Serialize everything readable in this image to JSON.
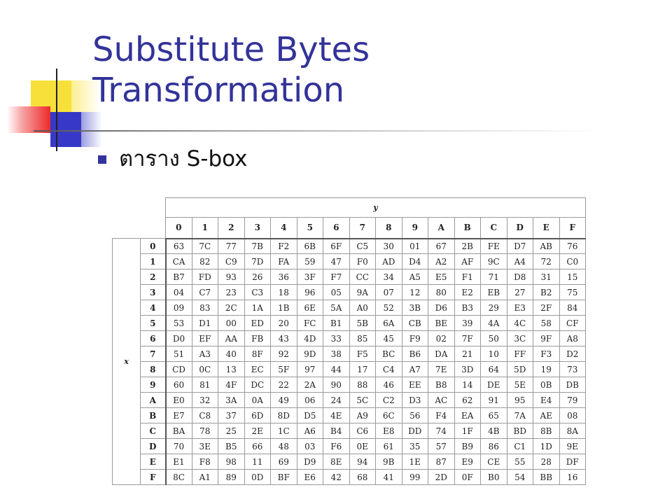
{
  "slide": {
    "title": "Substitute Bytes Transformation",
    "bullet": "ตาราง S-box"
  },
  "sbox": {
    "y_label": "y",
    "x_label": "x",
    "col_headers": [
      "0",
      "1",
      "2",
      "3",
      "4",
      "5",
      "6",
      "7",
      "8",
      "9",
      "A",
      "B",
      "C",
      "D",
      "E",
      "F"
    ],
    "rows": [
      {
        "h": "0",
        "v": [
          "63",
          "7C",
          "77",
          "7B",
          "F2",
          "6B",
          "6F",
          "C5",
          "30",
          "01",
          "67",
          "2B",
          "FE",
          "D7",
          "AB",
          "76"
        ]
      },
      {
        "h": "1",
        "v": [
          "CA",
          "82",
          "C9",
          "7D",
          "FA",
          "59",
          "47",
          "F0",
          "AD",
          "D4",
          "A2",
          "AF",
          "9C",
          "A4",
          "72",
          "C0"
        ]
      },
      {
        "h": "2",
        "v": [
          "B7",
          "FD",
          "93",
          "26",
          "36",
          "3F",
          "F7",
          "CC",
          "34",
          "A5",
          "E5",
          "F1",
          "71",
          "D8",
          "31",
          "15"
        ]
      },
      {
        "h": "3",
        "v": [
          "04",
          "C7",
          "23",
          "C3",
          "18",
          "96",
          "05",
          "9A",
          "07",
          "12",
          "80",
          "E2",
          "EB",
          "27",
          "B2",
          "75"
        ]
      },
      {
        "h": "4",
        "v": [
          "09",
          "83",
          "2C",
          "1A",
          "1B",
          "6E",
          "5A",
          "A0",
          "52",
          "3B",
          "D6",
          "B3",
          "29",
          "E3",
          "2F",
          "84"
        ]
      },
      {
        "h": "5",
        "v": [
          "53",
          "D1",
          "00",
          "ED",
          "20",
          "FC",
          "B1",
          "5B",
          "6A",
          "CB",
          "BE",
          "39",
          "4A",
          "4C",
          "58",
          "CF"
        ]
      },
      {
        "h": "6",
        "v": [
          "D0",
          "EF",
          "AA",
          "FB",
          "43",
          "4D",
          "33",
          "85",
          "45",
          "F9",
          "02",
          "7F",
          "50",
          "3C",
          "9F",
          "A8"
        ]
      },
      {
        "h": "7",
        "v": [
          "51",
          "A3",
          "40",
          "8F",
          "92",
          "9D",
          "38",
          "F5",
          "BC",
          "B6",
          "DA",
          "21",
          "10",
          "FF",
          "F3",
          "D2"
        ]
      },
      {
        "h": "8",
        "v": [
          "CD",
          "0C",
          "13",
          "EC",
          "5F",
          "97",
          "44",
          "17",
          "C4",
          "A7",
          "7E",
          "3D",
          "64",
          "5D",
          "19",
          "73"
        ]
      },
      {
        "h": "9",
        "v": [
          "60",
          "81",
          "4F",
          "DC",
          "22",
          "2A",
          "90",
          "88",
          "46",
          "EE",
          "B8",
          "14",
          "DE",
          "5E",
          "0B",
          "DB"
        ]
      },
      {
        "h": "A",
        "v": [
          "E0",
          "32",
          "3A",
          "0A",
          "49",
          "06",
          "24",
          "5C",
          "C2",
          "D3",
          "AC",
          "62",
          "91",
          "95",
          "E4",
          "79"
        ]
      },
      {
        "h": "B",
        "v": [
          "E7",
          "C8",
          "37",
          "6D",
          "8D",
          "D5",
          "4E",
          "A9",
          "6C",
          "56",
          "F4",
          "EA",
          "65",
          "7A",
          "AE",
          "08"
        ]
      },
      {
        "h": "C",
        "v": [
          "BA",
          "78",
          "25",
          "2E",
          "1C",
          "A6",
          "B4",
          "C6",
          "E8",
          "DD",
          "74",
          "1F",
          "4B",
          "BD",
          "8B",
          "8A"
        ]
      },
      {
        "h": "D",
        "v": [
          "70",
          "3E",
          "B5",
          "66",
          "48",
          "03",
          "F6",
          "0E",
          "61",
          "35",
          "57",
          "B9",
          "86",
          "C1",
          "1D",
          "9E"
        ]
      },
      {
        "h": "E",
        "v": [
          "E1",
          "F8",
          "98",
          "11",
          "69",
          "D9",
          "8E",
          "94",
          "9B",
          "1E",
          "87",
          "E9",
          "CE",
          "55",
          "28",
          "DF"
        ]
      },
      {
        "h": "F",
        "v": [
          "8C",
          "A1",
          "89",
          "0D",
          "BF",
          "E6",
          "42",
          "68",
          "41",
          "99",
          "2D",
          "0F",
          "B0",
          "54",
          "BB",
          "16"
        ]
      }
    ]
  }
}
